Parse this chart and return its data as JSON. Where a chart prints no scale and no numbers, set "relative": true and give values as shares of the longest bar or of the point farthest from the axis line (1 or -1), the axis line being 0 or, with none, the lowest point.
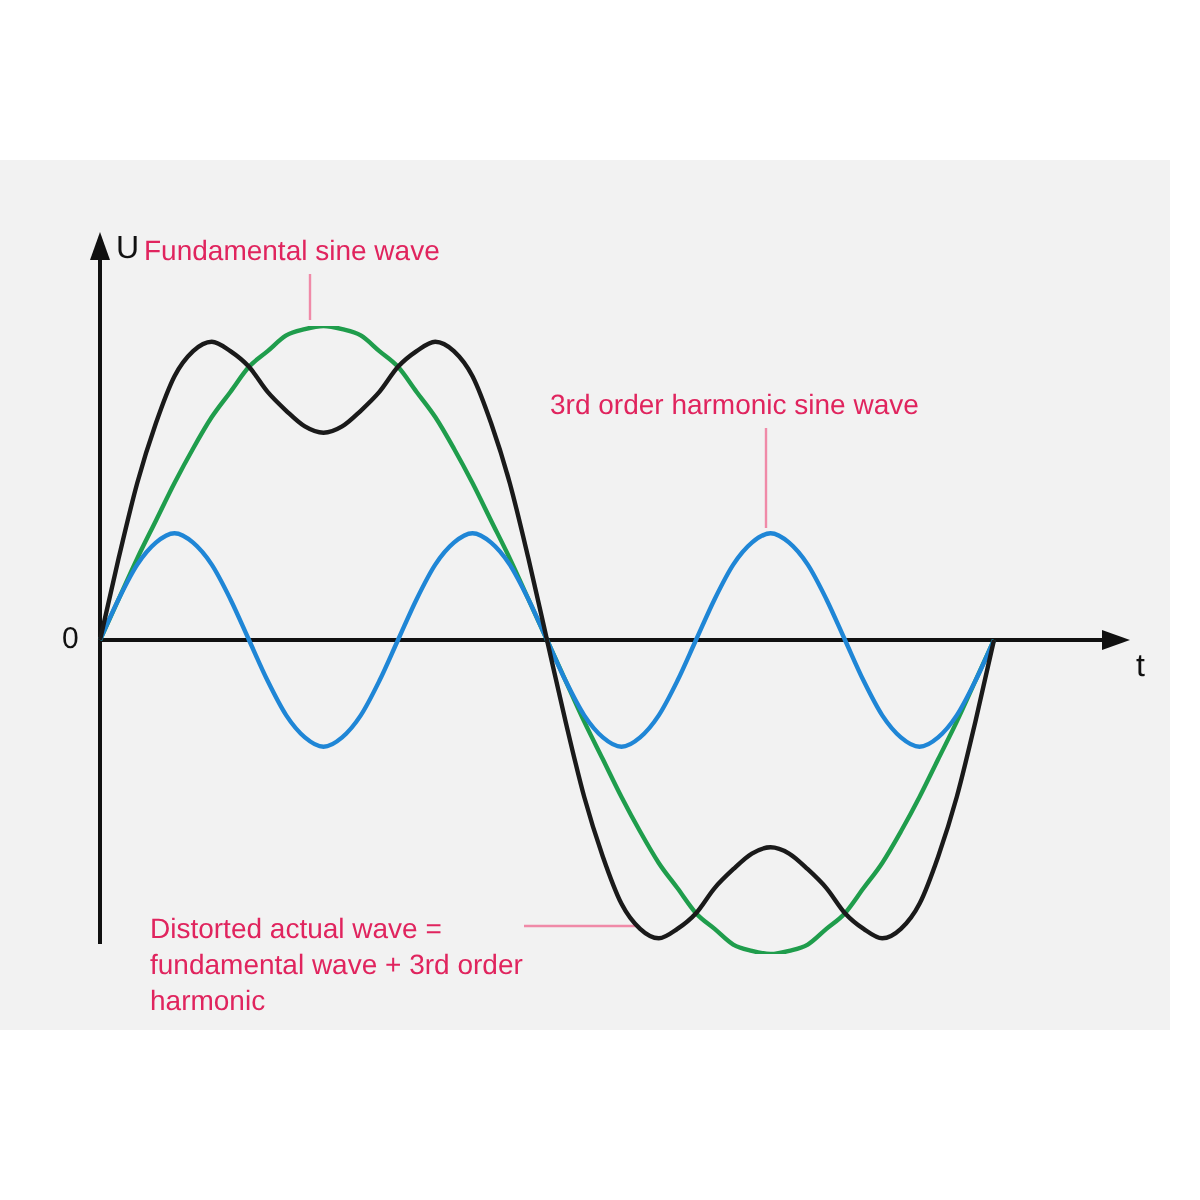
{
  "chart_data": {
    "type": "line",
    "relative": true,
    "xlabel": "t",
    "ylabel": "U",
    "categories": [
      null,
      null,
      null,
      null,
      null,
      null,
      null,
      null,
      null,
      null,
      null,
      null,
      null,
      null,
      null,
      null,
      null,
      null,
      null,
      null,
      null,
      null,
      null,
      null,
      null,
      null,
      null,
      null,
      null,
      null,
      null,
      null,
      null,
      null,
      null,
      null,
      null,
      null,
      null,
      null,
      null,
      null,
      null,
      null,
      null,
      null,
      null,
      null,
      null
    ],
    "series": [
      {
        "color": "#1f9d4c",
        "values": [
          0,
          0.13,
          0.26,
          0.38,
          0.5,
          0.61,
          0.71,
          0.79,
          0.87,
          0.92,
          0.97,
          0.99,
          1,
          0.99,
          0.97,
          0.92,
          0.87,
          0.79,
          0.71,
          0.61,
          0.5,
          0.38,
          0.26,
          0.13,
          0,
          -0.13,
          -0.26,
          -0.38,
          -0.5,
          -0.61,
          -0.71,
          -0.79,
          -0.87,
          -0.92,
          -0.97,
          -0.99,
          -1,
          -0.99,
          -0.97,
          -0.92,
          -0.87,
          -0.79,
          -0.71,
          -0.61,
          -0.5,
          -0.38,
          -0.26,
          -0.13,
          0
        ]
      },
      {
        "color": "#1f86d6",
        "values": [
          0,
          0.13,
          0.24,
          0.31,
          0.34,
          0.31,
          0.24,
          0.13,
          0,
          -0.13,
          -0.24,
          -0.31,
          -0.34,
          -0.31,
          -0.24,
          -0.13,
          0,
          0.13,
          0.24,
          0.31,
          0.34,
          0.31,
          0.24,
          0.13,
          0,
          -0.13,
          -0.24,
          -0.31,
          -0.34,
          -0.31,
          -0.24,
          -0.13,
          0,
          0.13,
          0.24,
          0.31,
          0.34,
          0.31,
          0.24,
          0.13,
          0,
          -0.13,
          -0.24,
          -0.31,
          -0.34,
          -0.31,
          -0.24,
          -0.13,
          0
        ]
      },
      {
        "color": "#1a1a1a",
        "values": [
          0,
          0.26,
          0.5,
          0.69,
          0.84,
          0.92,
          0.95,
          0.92,
          0.87,
          0.79,
          0.73,
          0.68,
          0.66,
          0.68,
          0.73,
          0.79,
          0.87,
          0.92,
          0.95,
          0.92,
          0.84,
          0.69,
          0.5,
          0.26,
          0,
          -0.26,
          -0.5,
          -0.69,
          -0.84,
          -0.92,
          -0.95,
          -0.92,
          -0.87,
          -0.79,
          -0.73,
          -0.68,
          -0.66,
          -0.68,
          -0.73,
          -0.79,
          -0.87,
          -0.92,
          -0.95,
          -0.92,
          -0.84,
          -0.69,
          -0.5,
          -0.26,
          0
        ]
      }
    ],
    "annotations": [
      "0",
      "Fundamental sine wave",
      "3rd order harmonic sine wave",
      "Distorted actual wave = fundamental wave + 3rd order harmonic"
    ]
  }
}
